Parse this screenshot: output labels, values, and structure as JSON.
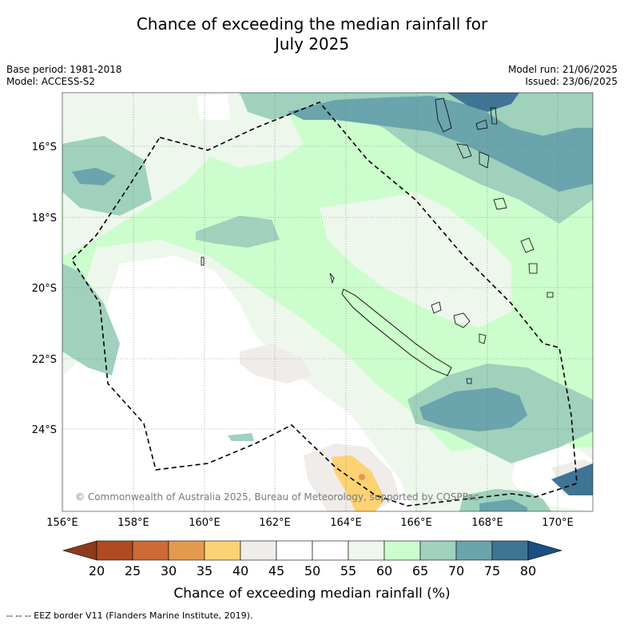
{
  "title_line1": "Chance of exceeding the median rainfall for",
  "title_line2": "July 2025",
  "meta_left": {
    "base_period": "Base period: 1981-2018",
    "model": "Model: ACCESS-S2"
  },
  "meta_right": {
    "model_run": "Model run: 21/06/2025",
    "issued": "Issued: 23/06/2025"
  },
  "copyright": "© Commonwealth of Australia 2025, Bureau of Meteorology, supported by COSPPac",
  "lat_labels": [
    "16°S",
    "18°S",
    "20°S",
    "22°S",
    "24°S"
  ],
  "lon_labels": [
    "156°E",
    "158°E",
    "160°E",
    "162°E",
    "164°E",
    "166°E",
    "168°E",
    "170°E"
  ],
  "colorbar": {
    "ticks": [
      "20",
      "25",
      "30",
      "35",
      "40",
      "45",
      "50",
      "55",
      "60",
      "65",
      "70",
      "75",
      "80"
    ],
    "colors": [
      "#b04a22",
      "#cd6a35",
      "#e49a4e",
      "#fdd274",
      "#efecea",
      "#ffffff",
      "#ffffff",
      "#edf7ec",
      "#ccfdcc",
      "#9fd1bd",
      "#6aa4ac",
      "#3f7494"
    ],
    "low_extend_color": "#8c3a1c",
    "high_extend_color": "#1a4f80",
    "label": "Chance of exceeding median rainfall (%)"
  },
  "footer": "--  --  -- EEZ border V11 (Flanders Marine Institute, 2019)."
}
